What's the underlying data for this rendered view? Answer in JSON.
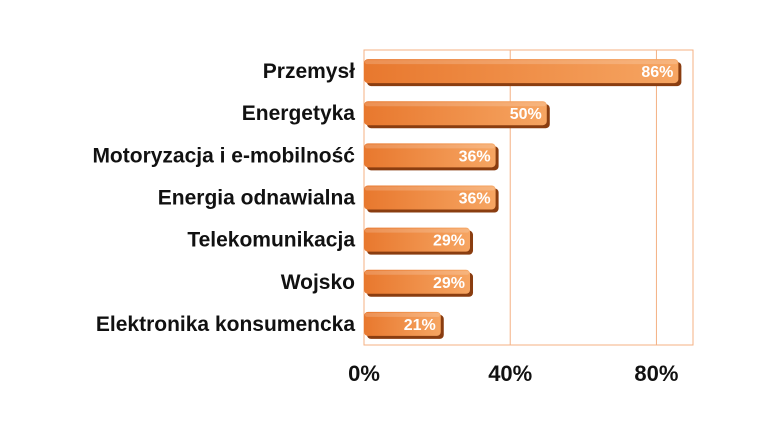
{
  "chart_data": {
    "type": "bar",
    "orientation": "horizontal",
    "categories": [
      "Przemysł",
      "Energetyka",
      "Motoryzacja i e-mobilność",
      "Energia odnawialna",
      "Telekomunikacja",
      "Wojsko",
      "Elektronika konsumencka"
    ],
    "values": [
      86,
      50,
      36,
      36,
      29,
      29,
      21
    ],
    "data_labels": [
      "86%",
      "50%",
      "36%",
      "36%",
      "29%",
      "29%",
      "21%"
    ],
    "xlim": [
      0,
      90
    ],
    "xticks": [
      0,
      40,
      80
    ],
    "xtick_labels": [
      "0%",
      "40%",
      "80%"
    ],
    "grid": "vertical lines at ticks",
    "legend": "none",
    "colors": {
      "bar_light": "#f6a562",
      "bar_dark": "#e8782e",
      "bar_shadow": "#8a3d10",
      "plot_border": "#f4b183",
      "gridline": "#f4b183"
    }
  }
}
